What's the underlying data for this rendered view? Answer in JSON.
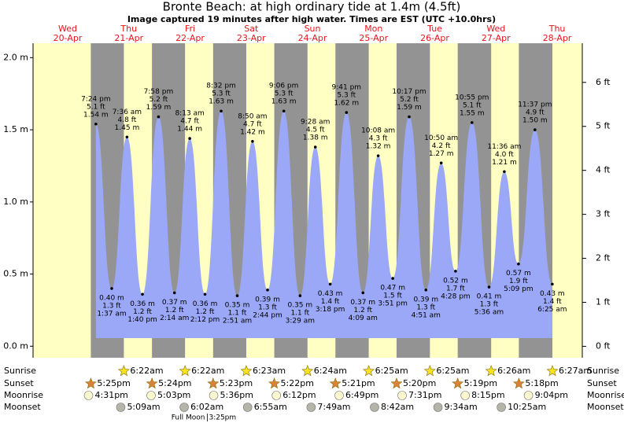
{
  "chart_data": {
    "type": "tide",
    "title": "Bronte Beach: at high  ordinary tide at 1.4m (4.5ft)",
    "subtitle": "Image captured 19 minutes after high water. Times are EST (UTC +10.0hrs)",
    "ylim": [
      -0.08,
      2.1
    ],
    "yticks": [
      {
        "value": 0,
        "label": "0.0 m"
      },
      {
        "value": 0.5,
        "label": "0.5 m"
      },
      {
        "value": 1,
        "label": "1.0 m"
      },
      {
        "value": 1.5,
        "label": "1.5 m"
      },
      {
        "value": 2,
        "label": "2.0 m"
      }
    ],
    "y2lim": [
      -0.26,
      6.89
    ],
    "y2ticks": [
      {
        "value": 0,
        "label": "0 ft"
      },
      {
        "value": 1,
        "label": "1 ft"
      },
      {
        "value": 2,
        "label": "2 ft"
      },
      {
        "value": 3,
        "label": "3 ft"
      },
      {
        "value": 4,
        "label": "4 ft"
      },
      {
        "value": 5,
        "label": "5 ft"
      },
      {
        "value": 6,
        "label": "6 ft"
      }
    ],
    "colors": {
      "day": "#ffffc4",
      "night": "#939393",
      "water": "#9ba8f7",
      "date": "#e8141c"
    },
    "row_labels": {
      "sunrise": "Sunrise",
      "sunset": "Sunset",
      "moonrise": "Moonrise",
      "moonset": "Moonset"
    },
    "days": [
      {
        "weekday": "Wed",
        "date": "20-Apr",
        "sunset": "5:25pm",
        "moonrise": "4:31pm",
        "tides": [
          {
            "time": "7:24 pm",
            "height_ft": "5.1 ft",
            "height": 1.54,
            "height_label": "1.54 m"
          }
        ]
      },
      {
        "weekday": "Thu",
        "date": "21-Apr",
        "sunrise": "6:22am",
        "sunset": "5:24pm",
        "moonrise": "5:03pm",
        "moonset": "5:09am",
        "tides": [
          {
            "time": "1:37 am",
            "height_ft": "1.3 ft",
            "height": 0.4,
            "height_label": "0.40 m"
          },
          {
            "time": "7:36 am",
            "height_ft": "4.8 ft",
            "height": 1.45,
            "height_label": "1.45 m"
          },
          {
            "time": "1:40 pm",
            "height_ft": "1.2 ft",
            "height": 0.36,
            "height_label": "0.36 m"
          },
          {
            "time": "7:58 pm",
            "height_ft": "5.2 ft",
            "height": 1.59,
            "height_label": "1.59 m"
          }
        ]
      },
      {
        "weekday": "Fri",
        "date": "22-Apr",
        "sunrise": "6:22am",
        "sunset": "5:23pm",
        "moonrise": "5:36pm",
        "moonset": "6:02am",
        "moon_phase": "Full Moon",
        "moon_phase_time": "3:25pm",
        "tides": [
          {
            "time": "2:14 am",
            "height_ft": "1.2 ft",
            "height": 0.37,
            "height_label": "0.37 m"
          },
          {
            "time": "8:13 am",
            "height_ft": "4.7 ft",
            "height": 1.44,
            "height_label": "1.44 m"
          },
          {
            "time": "2:12 pm",
            "height_ft": "1.2 ft",
            "height": 0.36,
            "height_label": "0.36 m"
          },
          {
            "time": "8:32 pm",
            "height_ft": "5.3 ft",
            "height": 1.63,
            "height_label": "1.63 m"
          }
        ]
      },
      {
        "weekday": "Sat",
        "date": "23-Apr",
        "sunrise": "6:23am",
        "sunset": "5:22pm",
        "moonrise": "6:12pm",
        "moonset": "6:55am",
        "tides": [
          {
            "time": "2:51 am",
            "height_ft": "1.1 ft",
            "height": 0.35,
            "height_label": "0.35 m"
          },
          {
            "time": "8:50 am",
            "height_ft": "4.7 ft",
            "height": 1.42,
            "height_label": "1.42 m"
          },
          {
            "time": "2:44 pm",
            "height_ft": "1.3 ft",
            "height": 0.39,
            "height_label": "0.39 m"
          },
          {
            "time": "9:06 pm",
            "height_ft": "5.3 ft",
            "height": 1.63,
            "height_label": "1.63 m"
          }
        ]
      },
      {
        "weekday": "Sun",
        "date": "24-Apr",
        "sunrise": "6:24am",
        "sunset": "5:21pm",
        "moonrise": "6:49pm",
        "moonset": "7:49am",
        "tides": [
          {
            "time": "3:29 am",
            "height_ft": "1.1 ft",
            "height": 0.35,
            "height_label": "0.35 m"
          },
          {
            "time": "9:28 am",
            "height_ft": "4.5 ft",
            "height": 1.38,
            "height_label": "1.38 m"
          },
          {
            "time": "3:18 pm",
            "height_ft": "1.4 ft",
            "height": 0.43,
            "height_label": "0.43 m"
          },
          {
            "time": "9:41 pm",
            "height_ft": "5.3 ft",
            "height": 1.62,
            "height_label": "1.62 m"
          }
        ]
      },
      {
        "weekday": "Mon",
        "date": "25-Apr",
        "sunrise": "6:25am",
        "sunset": "5:20pm",
        "moonrise": "7:31pm",
        "moonset": "8:42am",
        "tides": [
          {
            "time": "4:09 am",
            "height_ft": "1.2 ft",
            "height": 0.37,
            "height_label": "0.37 m"
          },
          {
            "time": "10:08 am",
            "height_ft": "4.3 ft",
            "height": 1.32,
            "height_label": "1.32 m"
          },
          {
            "time": "3:51 pm",
            "height_ft": "1.5 ft",
            "height": 0.47,
            "height_label": "0.47 m"
          },
          {
            "time": "10:17 pm",
            "height_ft": "5.2 ft",
            "height": 1.59,
            "height_label": "1.59 m"
          }
        ]
      },
      {
        "weekday": "Tue",
        "date": "26-Apr",
        "sunrise": "6:25am",
        "sunset": "5:19pm",
        "moonrise": "8:15pm",
        "moonset": "9:34am",
        "tides": [
          {
            "time": "4:51 am",
            "height_ft": "1.3 ft",
            "height": 0.39,
            "height_label": "0.39 m"
          },
          {
            "time": "10:50 am",
            "height_ft": "4.2 ft",
            "height": 1.27,
            "height_label": "1.27 m"
          },
          {
            "time": "4:28 pm",
            "height_ft": "1.7 ft",
            "height": 0.52,
            "height_label": "0.52 m"
          },
          {
            "time": "10:55 pm",
            "height_ft": "5.1 ft",
            "height": 1.55,
            "height_label": "1.55 m"
          }
        ]
      },
      {
        "weekday": "Wed",
        "date": "27-Apr",
        "sunrise": "6:26am",
        "sunset": "5:18pm",
        "moonrise": "9:04pm",
        "moonset": "10:25am",
        "tides": [
          {
            "time": "5:36 am",
            "height_ft": "1.3 ft",
            "height": 0.41,
            "height_label": "0.41 m"
          },
          {
            "time": "11:36 am",
            "height_ft": "4.0 ft",
            "height": 1.21,
            "height_label": "1.21 m"
          },
          {
            "time": "5:09 pm",
            "height_ft": "1.9 ft",
            "height": 0.57,
            "height_label": "0.57 m"
          },
          {
            "time": "11:37 pm",
            "height_ft": "4.9 ft",
            "height": 1.5,
            "height_label": "1.50 m"
          }
        ]
      },
      {
        "weekday": "Thu",
        "date": "28-Apr",
        "sunrise": "6:27am",
        "tides": [
          {
            "time": "6:25 am",
            "height_ft": "1.4 ft",
            "height": 0.43,
            "height_label": "0.43 m"
          }
        ]
      }
    ]
  }
}
